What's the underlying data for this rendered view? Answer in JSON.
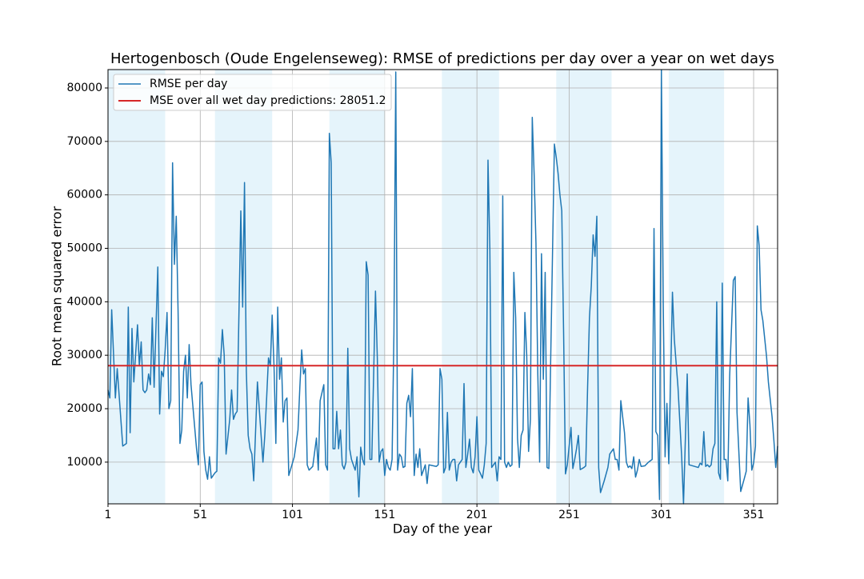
{
  "chart_data": {
    "type": "line",
    "title": "Hertogenbosch (Oude Engelenseweg): RMSE of predictions per day over a year on wet days",
    "xlabel": "Day of the year",
    "ylabel": "Root mean squared error",
    "x": [
      1,
      2,
      3,
      5,
      6,
      9,
      11,
      12,
      13,
      14,
      15,
      17,
      18,
      19,
      20,
      21,
      22,
      23,
      24,
      25,
      26,
      28,
      29,
      30,
      31,
      32,
      33,
      34,
      35,
      36,
      37,
      38,
      39,
      40,
      41,
      42,
      43,
      44,
      45,
      46,
      49,
      50,
      51,
      52,
      53,
      54,
      55,
      56,
      57,
      59,
      60,
      61,
      62,
      63,
      64,
      65,
      67,
      68,
      69,
      70,
      71,
      72,
      73,
      74,
      75,
      76,
      77,
      78,
      79,
      80,
      82,
      83,
      85,
      86,
      87,
      88,
      89,
      90,
      91,
      92,
      93,
      94,
      95,
      96,
      97,
      98,
      99,
      102,
      104,
      105,
      106,
      107,
      108,
      109,
      110,
      112,
      114,
      115,
      116,
      118,
      119,
      120,
      121,
      122,
      123,
      124,
      125,
      126,
      127,
      128,
      129,
      130,
      131,
      132,
      133,
      134,
      135,
      136,
      137,
      138,
      139,
      140,
      141,
      142,
      143,
      144,
      146,
      147,
      148,
      149,
      150,
      151,
      152,
      153,
      154,
      155,
      156,
      157,
      158,
      159,
      160,
      161,
      162,
      163,
      164,
      165,
      166,
      167,
      168,
      169,
      170,
      171,
      173,
      174,
      175,
      179,
      180,
      181,
      182,
      183,
      184,
      185,
      186,
      187,
      188,
      189,
      190,
      191,
      193,
      194,
      195,
      196,
      197,
      198,
      199,
      200,
      201,
      202,
      203,
      204,
      205,
      206,
      207,
      208,
      209,
      211,
      212,
      213,
      214,
      215,
      216,
      217,
      218,
      219,
      220,
      221,
      222,
      223,
      224,
      225,
      226,
      227,
      228,
      229,
      230,
      231,
      232,
      233,
      234,
      235,
      236,
      237,
      238,
      239,
      240,
      241,
      243,
      244,
      245,
      246,
      247,
      248,
      249,
      250,
      252,
      253,
      254,
      255,
      256,
      257,
      259,
      260,
      261,
      262,
      263,
      264,
      265,
      266,
      267,
      268,
      270,
      272,
      273,
      275,
      276,
      277,
      278,
      279,
      281,
      282,
      283,
      284,
      285,
      286,
      287,
      288,
      289,
      290,
      292,
      294,
      296,
      297,
      298,
      299,
      300,
      301,
      302,
      303,
      304,
      305,
      307,
      308,
      310,
      312,
      313,
      315,
      316,
      319,
      321,
      322,
      323,
      324,
      325,
      326,
      327,
      328,
      329,
      330,
      331,
      332,
      333,
      334,
      335,
      336,
      337,
      338,
      340,
      341,
      342,
      344,
      346,
      347,
      348,
      349,
      350,
      351,
      352,
      353,
      354,
      355,
      356,
      358,
      359,
      361,
      362,
      363,
      364
    ],
    "series": [
      {
        "name": "RMSE per day",
        "color": "#1f77b4",
        "values": [
          23500,
          22000,
          38500,
          22000,
          27500,
          13000,
          13500,
          39000,
          15500,
          35000,
          25000,
          35700,
          28000,
          32500,
          23500,
          23000,
          23500,
          26500,
          24500,
          37000,
          24000,
          46500,
          19000,
          27000,
          26000,
          31000,
          38000,
          20000,
          21500,
          66000,
          47000,
          56000,
          38000,
          13500,
          16000,
          27000,
          30000,
          22000,
          32000,
          24500,
          12500,
          9500,
          24500,
          25000,
          12000,
          8500,
          6800,
          11000,
          7000,
          8000,
          8300,
          29500,
          28500,
          34800,
          30000,
          11500,
          18000,
          23500,
          18000,
          19000,
          19500,
          38000,
          57000,
          39000,
          62300,
          27000,
          15000,
          12500,
          11500,
          6500,
          25000,
          20000,
          10000,
          15000,
          22000,
          29500,
          28000,
          37500,
          28000,
          13500,
          39000,
          25500,
          29500,
          17500,
          21500,
          22000,
          7500,
          11000,
          16000,
          24000,
          31000,
          26500,
          27500,
          9500,
          8500,
          9200,
          14500,
          8500,
          21500,
          24500,
          9500,
          8500,
          71500,
          66000,
          12500,
          12500,
          19500,
          12500,
          16000,
          9500,
          8700,
          10000,
          31300,
          12500,
          10500,
          9500,
          8500,
          11000,
          3500,
          12800,
          10500,
          9500,
          47500,
          45000,
          10500,
          10500,
          42000,
          29500,
          10000,
          12000,
          12500,
          7500,
          10500,
          9000,
          8500,
          10500,
          34000,
          83000,
          8500,
          11500,
          11000,
          9000,
          9200,
          21000,
          22500,
          18500,
          27500,
          7500,
          11500,
          9000,
          12500,
          7500,
          9500,
          6000,
          9500,
          9200,
          9500,
          27500,
          25500,
          8000,
          9000,
          19300,
          8500,
          10000,
          10500,
          10500,
          6500,
          9500,
          10500,
          24700,
          9000,
          11500,
          14300,
          9000,
          8000,
          11000,
          18500,
          8500,
          7800,
          7000,
          9500,
          13500,
          66500,
          50000,
          9000,
          10000,
          6500,
          11000,
          10500,
          59800,
          10000,
          9000,
          10000,
          9200,
          9500,
          45500,
          37000,
          14500,
          9000,
          15000,
          16000,
          38000,
          30000,
          12000,
          18000,
          74500,
          64000,
          51000,
          26500,
          10000,
          49000,
          25500,
          45500,
          9000,
          8800,
          29500,
          69500,
          67000,
          64000,
          60000,
          57000,
          34000,
          7800,
          9500,
          16500,
          8800,
          10500,
          12500,
          15000,
          8600,
          9000,
          9300,
          24000,
          37000,
          43000,
          52500,
          48500,
          56000,
          9000,
          4300,
          6500,
          9000,
          11500,
          12500,
          10500,
          10500,
          8500,
          21500,
          15500,
          10000,
          9000,
          9300,
          8800,
          11000,
          7200,
          8500,
          10500,
          9200,
          9300,
          10000,
          10500,
          53700,
          15700,
          15000,
          3000,
          83400,
          39800,
          11000,
          21000,
          9700,
          41800,
          33000,
          24000,
          11000,
          2200,
          26500,
          9500,
          9200,
          9000,
          9800,
          9500,
          15700,
          9200,
          9500,
          9100,
          9500,
          12500,
          13500,
          40000,
          8000,
          6800,
          43500,
          10500,
          10500,
          6500,
          26000,
          44000,
          44700,
          19300,
          4500,
          7000,
          8300,
          22000,
          17000,
          8500,
          9800,
          13000,
          54200,
          50500,
          38500,
          36500,
          29800,
          25000,
          18500,
          14000,
          9000,
          13000
        ]
      }
    ],
    "hline": {
      "name": "MSE over all wet day predictions: 28051.2",
      "value": 28051.2,
      "color": "#d62728"
    },
    "bands": [
      [
        1,
        32
      ],
      [
        59,
        90
      ],
      [
        121,
        151
      ],
      [
        182,
        213
      ],
      [
        244,
        274
      ],
      [
        305,
        335
      ]
    ],
    "band_color": "#e5f4fb",
    "xlim": [
      1,
      364
    ],
    "ylim": [
      2200,
      83440
    ],
    "xticks": [
      1,
      51,
      101,
      151,
      201,
      251,
      301,
      351
    ],
    "yticks": [
      10000,
      20000,
      30000,
      40000,
      50000,
      60000,
      70000,
      80000
    ],
    "grid": true,
    "legend": "upper left"
  }
}
